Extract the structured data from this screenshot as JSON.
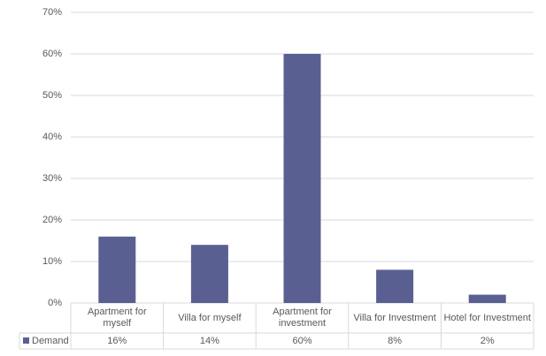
{
  "chart_data": {
    "type": "bar",
    "categories": [
      "Apartment for myself",
      "Villa for myself",
      "Apartment for investment",
      "Villa for Investment",
      "Hotel for Investment"
    ],
    "series": [
      {
        "name": "Demand",
        "color": "#5a5f92",
        "values": [
          16,
          14,
          60,
          8,
          2
        ],
        "value_labels": [
          "16%",
          "14%",
          "60%",
          "8%",
          "2%"
        ]
      }
    ],
    "ylim": [
      0,
      70
    ],
    "yticks": [
      {
        "value": 0,
        "label": "0%"
      },
      {
        "value": 10,
        "label": "10%"
      },
      {
        "value": 20,
        "label": "20%"
      },
      {
        "value": 30,
        "label": "30%"
      },
      {
        "value": 40,
        "label": "40%"
      },
      {
        "value": 50,
        "label": "50%"
      },
      {
        "value": 60,
        "label": "60%"
      },
      {
        "value": 70,
        "label": "70%"
      }
    ],
    "grid": true
  }
}
